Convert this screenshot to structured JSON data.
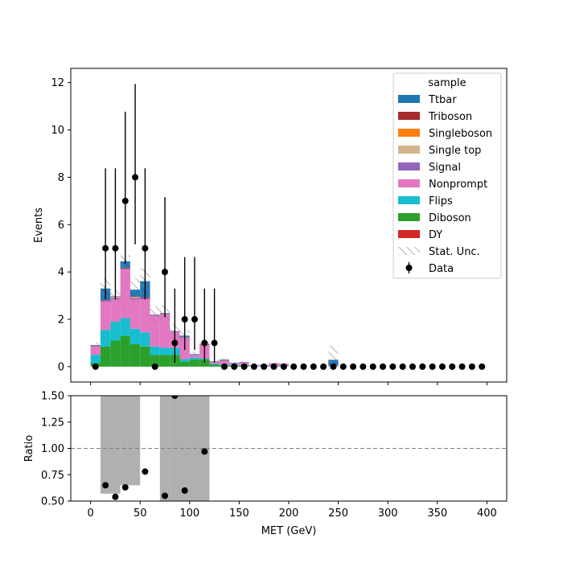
{
  "chart_data": [
    {
      "type": "bar",
      "stacked": true,
      "ylabel": "Events",
      "ylim": [
        -0.65,
        12.6
      ],
      "xlim": [
        -20,
        420
      ],
      "y_ticks": [
        0,
        2,
        4,
        6,
        8,
        10,
        12
      ],
      "bin_edges": [
        0,
        10,
        20,
        30,
        40,
        50,
        60,
        70,
        80,
        90,
        100,
        110,
        120,
        130,
        140,
        150,
        160,
        170,
        180,
        190,
        200,
        210,
        220,
        230,
        240,
        250,
        260,
        270,
        280,
        290,
        300,
        310,
        320,
        330,
        340,
        350,
        360,
        370,
        380,
        390,
        400
      ],
      "legend_title": "sample",
      "legend_position": "top-right",
      "series": [
        {
          "name": "DY",
          "color": "#d62728",
          "values": [
            0,
            0,
            0,
            0,
            0,
            0,
            0,
            0,
            0,
            0,
            0,
            0,
            0,
            0,
            0,
            0,
            0,
            0,
            0,
            0,
            0,
            0,
            0,
            0,
            0,
            0,
            0,
            0,
            0,
            0,
            0,
            0,
            0,
            0,
            0,
            0,
            0,
            0,
            0,
            0
          ]
        },
        {
          "name": "Diboson",
          "color": "#2ca02c",
          "values": [
            0.15,
            0.85,
            1.1,
            1.3,
            0.95,
            0.85,
            0.5,
            0.5,
            0.5,
            0.22,
            0.3,
            0.3,
            0.08,
            0.05,
            0.04,
            0.04,
            0,
            0,
            0,
            0,
            0,
            0,
            0,
            0,
            0,
            0,
            0,
            0,
            0,
            0,
            0,
            0,
            0,
            0,
            0,
            0,
            0,
            0,
            0,
            0
          ]
        },
        {
          "name": "Flips",
          "color": "#17becf",
          "values": [
            0.35,
            0.7,
            0.8,
            0.75,
            0.65,
            0.6,
            0.35,
            0.3,
            0.3,
            0.1,
            0.08,
            0.05,
            0.05,
            0.04,
            0.03,
            0.03,
            0.02,
            0.02,
            0.02,
            0.02,
            0,
            0,
            0,
            0,
            0.02,
            0,
            0,
            0,
            0,
            0,
            0,
            0,
            0,
            0,
            0,
            0,
            0,
            0,
            0,
            0
          ]
        },
        {
          "name": "Nonprompt",
          "color": "#e377c2",
          "values": [
            0.35,
            1.2,
            0.95,
            2.05,
            1.25,
            1.4,
            1.3,
            1.4,
            0.65,
            0.9,
            0.1,
            0.55,
            0.08,
            0.15,
            0.06,
            0.1,
            0.04,
            0.05,
            0.12,
            0.1,
            0,
            0,
            0,
            0,
            0.03,
            0,
            0,
            0,
            0,
            0,
            0,
            0,
            0,
            0,
            0,
            0,
            0,
            0,
            0,
            0
          ]
        },
        {
          "name": "Signal",
          "color": "#9467bd",
          "values": [
            0.03,
            0.05,
            0.05,
            0.05,
            0.05,
            0.05,
            0.03,
            0.03,
            0.03,
            0.03,
            0.02,
            0.02,
            0.01,
            0.02,
            0.01,
            0.02,
            0.01,
            0.01,
            0.01,
            0.01,
            0,
            0,
            0,
            0,
            0.01,
            0,
            0,
            0,
            0,
            0,
            0,
            0,
            0,
            0,
            0,
            0,
            0,
            0,
            0,
            0
          ]
        },
        {
          "name": "Single top",
          "color": "#d4b48c",
          "values": [
            0,
            0,
            0.05,
            0,
            0.05,
            0,
            0,
            0,
            0,
            0,
            0,
            0,
            0,
            0,
            0,
            0,
            0,
            0,
            0,
            0,
            0,
            0,
            0,
            0,
            0,
            0,
            0,
            0,
            0,
            0,
            0,
            0,
            0,
            0,
            0,
            0,
            0,
            0,
            0,
            0
          ]
        },
        {
          "name": "Singleboson",
          "color": "#ff7f0e",
          "values": [
            0,
            0,
            0,
            0,
            0,
            0,
            0,
            0,
            0,
            0,
            0,
            0,
            0,
            0,
            0,
            0,
            0,
            0,
            0,
            0,
            0,
            0,
            0,
            0,
            0,
            0,
            0,
            0,
            0,
            0,
            0,
            0,
            0,
            0,
            0,
            0,
            0,
            0,
            0,
            0
          ]
        },
        {
          "name": "Triboson",
          "color": "#a52a2a",
          "values": [
            0.01,
            0.02,
            0.02,
            0.03,
            0.02,
            0.03,
            0.01,
            0.02,
            0.01,
            0.01,
            0.01,
            0.01,
            0.01,
            0.01,
            0,
            0,
            0,
            0,
            0,
            0,
            0,
            0,
            0,
            0,
            0,
            0,
            0,
            0,
            0,
            0,
            0,
            0,
            0,
            0,
            0,
            0,
            0,
            0,
            0,
            0
          ]
        },
        {
          "name": "Ttbar",
          "color": "#1f77b4",
          "values": [
            0.02,
            0.48,
            0,
            0.27,
            0.28,
            0.68,
            0.01,
            0.01,
            0.01,
            0.05,
            0.02,
            0.02,
            0,
            0.03,
            0.02,
            0.01,
            0,
            0,
            0,
            0,
            0,
            0,
            0,
            0,
            0.23,
            0,
            0,
            0,
            0,
            0,
            0,
            0,
            0,
            0,
            0,
            0,
            0,
            0,
            0,
            0
          ]
        }
      ],
      "stat_unc": [
        0.1,
        0.4,
        0.25,
        0.25,
        0.5,
        0.55,
        0.35,
        0.35,
        0.3,
        0.25,
        0.1,
        0.1,
        0.05,
        0.05,
        0.04,
        0.04,
        0.03,
        0.03,
        0.03,
        0.03,
        0,
        0,
        0,
        0,
        0.6,
        0,
        0,
        0,
        0,
        0,
        0,
        0,
        0,
        0,
        0,
        0,
        0,
        0,
        0,
        0
      ],
      "stat_unc_label": "Stat. Unc.",
      "data": {
        "name": "Data",
        "x": [
          5,
          15,
          25,
          35,
          45,
          55,
          65,
          75,
          85,
          95,
          105,
          115,
          125,
          135,
          145,
          155,
          165,
          175,
          185,
          195,
          205,
          215,
          225,
          235,
          245,
          255,
          265,
          275,
          285,
          295,
          305,
          315,
          325,
          335,
          345,
          355,
          365,
          375,
          385,
          395
        ],
        "y": [
          0,
          5,
          5,
          7,
          8,
          5,
          0,
          4,
          1,
          2,
          2,
          1,
          1,
          0,
          0,
          0,
          0,
          0,
          0,
          0,
          0,
          0,
          0,
          0,
          0,
          0,
          0,
          0,
          0,
          0,
          0,
          0,
          0,
          0,
          0,
          0,
          0,
          0,
          0,
          0
        ],
        "err_lo": [
          0,
          2.16,
          2.16,
          2.65,
          2.83,
          2.16,
          0,
          1.91,
          0.83,
          1.29,
          1.29,
          0.83,
          0.83,
          0,
          0,
          0,
          0,
          0,
          0,
          0,
          0,
          0,
          0,
          0,
          0,
          0,
          0,
          0,
          0,
          0,
          0,
          0,
          0,
          0,
          0,
          0,
          0,
          0,
          0,
          0
        ],
        "err_hi": [
          0,
          3.38,
          3.38,
          3.77,
          3.94,
          3.38,
          0,
          3.16,
          2.3,
          2.63,
          2.63,
          2.3,
          2.3,
          0,
          0,
          0,
          0,
          0,
          0,
          0,
          0,
          0,
          0,
          0,
          0,
          0,
          0,
          0,
          0,
          0,
          0,
          0,
          0,
          0,
          0,
          0,
          0,
          0,
          0,
          0
        ]
      }
    },
    {
      "type": "scatter",
      "xlabel": "MET (GeV)",
      "ylabel": "Ratio",
      "xlim": [
        -20,
        420
      ],
      "ylim": [
        0.5,
        1.5
      ],
      "x_ticks": [
        0,
        50,
        100,
        150,
        200,
        250,
        300,
        350,
        400
      ],
      "y_ticks": [
        "0.50",
        "0.75",
        "1.00",
        "1.25",
        "1.50"
      ],
      "reference_line": 1.0,
      "unc_bands": [
        {
          "x0": 10,
          "x1": 30,
          "lo": 0.57,
          "hi": 1.5
        },
        {
          "x0": 30,
          "x1": 50,
          "lo": 0.65,
          "hi": 1.5
        },
        {
          "x0": 70,
          "x1": 80,
          "lo": 0.5,
          "hi": 1.5
        },
        {
          "x0": 80,
          "x1": 120,
          "lo": 0.5,
          "hi": 1.5
        }
      ],
      "points": {
        "x": [
          15,
          25,
          35,
          55,
          75,
          85,
          95,
          115
        ],
        "y": [
          0.65,
          0.54,
          0.63,
          0.78,
          0.55,
          1.5,
          0.6,
          0.97
        ]
      }
    }
  ]
}
